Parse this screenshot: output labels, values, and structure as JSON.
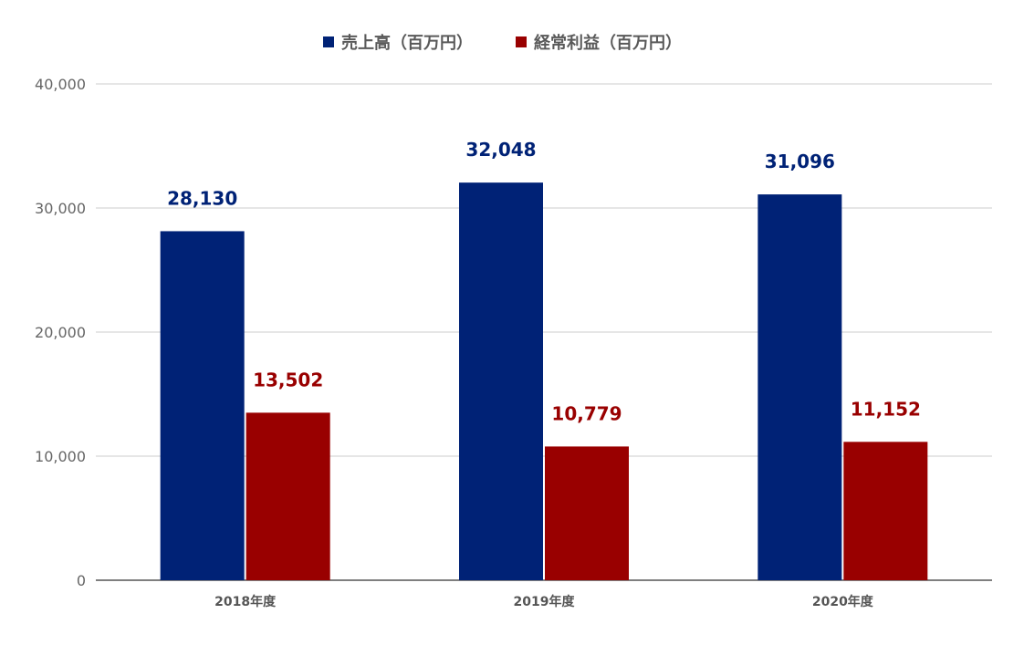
{
  "chart_data": {
    "type": "bar",
    "title": "",
    "xlabel": "",
    "ylabel": "",
    "categories": [
      "2018年度",
      "2019年度",
      "2020年度"
    ],
    "series": [
      {
        "name": "売上高（百万円）",
        "values": [
          28130,
          32048,
          31096
        ],
        "color": "#002276"
      },
      {
        "name": "経常利益（百万円）",
        "values": [
          13502,
          10779,
          11152
        ],
        "color": "#990000"
      }
    ],
    "data_labels": [
      [
        "28,130",
        "32,048",
        "31,096"
      ],
      [
        "13,502",
        "10,779",
        "11,152"
      ]
    ],
    "ylim": [
      0,
      40000
    ],
    "yticks": [
      0,
      10000,
      20000,
      30000,
      40000
    ],
    "ytick_labels": [
      "0",
      "10,000",
      "20,000",
      "30,000",
      "40,000"
    ],
    "grid": true,
    "legend_position": "top"
  }
}
